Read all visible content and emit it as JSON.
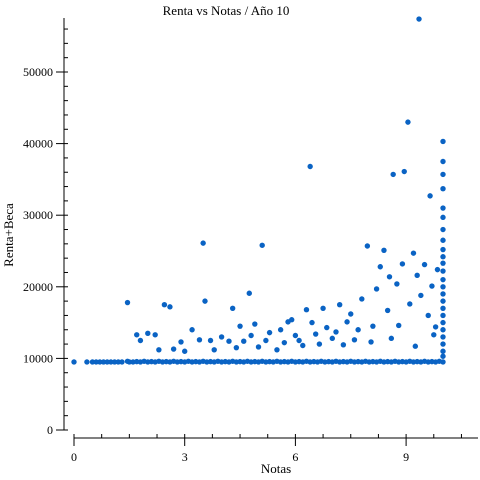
{
  "chart_data": {
    "type": "scatter",
    "title": "Renta vs Notas / Año 10",
    "xlabel": "Notas",
    "ylabel": "Renta+Beca",
    "xlim": [
      -0.35,
      11
    ],
    "ylim": [
      -1200,
      58000
    ],
    "x_ticks": [
      0,
      3,
      6,
      9
    ],
    "x_minor_ticks": [
      0.0,
      0.75,
      1.5,
      2.25,
      3.0,
      3.75,
      4.5,
      5.25,
      6.0,
      6.75,
      7.5,
      8.25,
      9.0,
      9.75,
      10.5
    ],
    "y_ticks": [
      0,
      10000,
      20000,
      30000,
      40000,
      50000
    ],
    "y_minor_ticks": [
      0,
      2000,
      4000,
      6000,
      8000,
      10000,
      12000,
      14000,
      16000,
      18000,
      20000,
      22000,
      24000,
      26000,
      28000,
      30000,
      32000,
      34000,
      36000,
      38000,
      40000,
      42000,
      44000,
      46000,
      48000,
      50000,
      52000,
      54000,
      56000
    ],
    "grid": false,
    "marker_color": "#0a63c4",
    "series": [
      {
        "points": [
          [
            0.0,
            9500
          ],
          [
            0.35,
            9500
          ],
          [
            0.5,
            9500
          ],
          [
            0.6,
            9500
          ],
          [
            0.7,
            9500
          ],
          [
            0.8,
            9500
          ],
          [
            0.9,
            9500
          ],
          [
            1.0,
            9500
          ],
          [
            1.1,
            9500
          ],
          [
            1.2,
            9500
          ],
          [
            1.3,
            9500
          ],
          [
            1.45,
            9600
          ],
          [
            1.5,
            9500
          ],
          [
            1.6,
            9500
          ],
          [
            1.7,
            9550
          ],
          [
            1.8,
            9500
          ],
          [
            1.9,
            9600
          ],
          [
            2.0,
            9500
          ],
          [
            2.1,
            9550
          ],
          [
            2.2,
            9500
          ],
          [
            2.3,
            9600
          ],
          [
            2.4,
            9500
          ],
          [
            2.5,
            9550
          ],
          [
            2.6,
            9500
          ],
          [
            2.7,
            9600
          ],
          [
            2.8,
            9500
          ],
          [
            2.9,
            9550
          ],
          [
            3.0,
            9500
          ],
          [
            3.1,
            9600
          ],
          [
            3.2,
            9500
          ],
          [
            3.3,
            9550
          ],
          [
            3.4,
            9500
          ],
          [
            3.5,
            9600
          ],
          [
            3.6,
            9500
          ],
          [
            3.7,
            9550
          ],
          [
            3.8,
            9500
          ],
          [
            3.9,
            9600
          ],
          [
            4.0,
            9500
          ],
          [
            4.1,
            9550
          ],
          [
            4.2,
            9500
          ],
          [
            4.3,
            9600
          ],
          [
            4.4,
            9500
          ],
          [
            4.5,
            9550
          ],
          [
            4.6,
            9500
          ],
          [
            4.7,
            9600
          ],
          [
            4.8,
            9500
          ],
          [
            4.9,
            9550
          ],
          [
            5.0,
            9500
          ],
          [
            5.1,
            9600
          ],
          [
            5.2,
            9500
          ],
          [
            5.3,
            9550
          ],
          [
            5.4,
            9500
          ],
          [
            5.5,
            9600
          ],
          [
            5.6,
            9500
          ],
          [
            5.7,
            9550
          ],
          [
            5.8,
            9500
          ],
          [
            5.9,
            9600
          ],
          [
            6.0,
            9500
          ],
          [
            6.1,
            9550
          ],
          [
            6.2,
            9500
          ],
          [
            6.3,
            9600
          ],
          [
            6.4,
            9500
          ],
          [
            6.5,
            9550
          ],
          [
            6.6,
            9500
          ],
          [
            6.7,
            9600
          ],
          [
            6.8,
            9500
          ],
          [
            6.9,
            9550
          ],
          [
            7.0,
            9500
          ],
          [
            7.1,
            9600
          ],
          [
            7.2,
            9500
          ],
          [
            7.3,
            9550
          ],
          [
            7.4,
            9500
          ],
          [
            7.5,
            9600
          ],
          [
            7.6,
            9500
          ],
          [
            7.7,
            9550
          ],
          [
            7.8,
            9500
          ],
          [
            7.9,
            9600
          ],
          [
            8.0,
            9500
          ],
          [
            8.1,
            9550
          ],
          [
            8.2,
            9500
          ],
          [
            8.3,
            9600
          ],
          [
            8.4,
            9500
          ],
          [
            8.5,
            9550
          ],
          [
            8.6,
            9500
          ],
          [
            8.7,
            9600
          ],
          [
            8.8,
            9500
          ],
          [
            8.9,
            9550
          ],
          [
            9.0,
            9500
          ],
          [
            9.1,
            9600
          ],
          [
            9.2,
            9500
          ],
          [
            9.3,
            9550
          ],
          [
            9.4,
            9500
          ],
          [
            9.5,
            9600
          ],
          [
            9.6,
            9500
          ],
          [
            9.7,
            9550
          ],
          [
            9.8,
            9500
          ],
          [
            9.9,
            9600
          ],
          [
            10.0,
            9500
          ],
          [
            1.45,
            17800
          ],
          [
            1.7,
            13300
          ],
          [
            1.8,
            12500
          ],
          [
            2.0,
            13500
          ],
          [
            2.2,
            13300
          ],
          [
            2.3,
            11200
          ],
          [
            2.45,
            17500
          ],
          [
            2.6,
            17200
          ],
          [
            2.7,
            11300
          ],
          [
            2.9,
            12300
          ],
          [
            3.0,
            11000
          ],
          [
            3.2,
            14000
          ],
          [
            3.4,
            12600
          ],
          [
            3.5,
            26100
          ],
          [
            3.55,
            18000
          ],
          [
            3.7,
            12500
          ],
          [
            3.8,
            11200
          ],
          [
            4.0,
            13000
          ],
          [
            4.2,
            12400
          ],
          [
            4.3,
            17000
          ],
          [
            4.4,
            11500
          ],
          [
            4.5,
            14500
          ],
          [
            4.6,
            12400
          ],
          [
            4.75,
            19100
          ],
          [
            4.8,
            13200
          ],
          [
            4.9,
            14800
          ],
          [
            5.0,
            11600
          ],
          [
            5.1,
            25800
          ],
          [
            5.2,
            12500
          ],
          [
            5.3,
            13600
          ],
          [
            5.5,
            11200
          ],
          [
            5.6,
            14000
          ],
          [
            5.7,
            12200
          ],
          [
            5.8,
            15100
          ],
          [
            5.9,
            15400
          ],
          [
            6.0,
            13200
          ],
          [
            6.1,
            12500
          ],
          [
            6.2,
            11800
          ],
          [
            6.3,
            16800
          ],
          [
            6.4,
            36800
          ],
          [
            6.45,
            15000
          ],
          [
            6.55,
            13400
          ],
          [
            6.65,
            12000
          ],
          [
            6.75,
            17000
          ],
          [
            6.85,
            14300
          ],
          [
            7.0,
            12800
          ],
          [
            7.1,
            13700
          ],
          [
            7.2,
            17500
          ],
          [
            7.3,
            11900
          ],
          [
            7.4,
            15100
          ],
          [
            7.5,
            16200
          ],
          [
            7.6,
            12600
          ],
          [
            7.7,
            14000
          ],
          [
            7.8,
            18300
          ],
          [
            7.95,
            25700
          ],
          [
            8.05,
            12300
          ],
          [
            8.1,
            14500
          ],
          [
            8.2,
            19700
          ],
          [
            8.3,
            22800
          ],
          [
            8.4,
            25100
          ],
          [
            8.5,
            16700
          ],
          [
            8.55,
            21400
          ],
          [
            8.6,
            12800
          ],
          [
            8.65,
            35700
          ],
          [
            8.75,
            20400
          ],
          [
            8.8,
            14600
          ],
          [
            8.9,
            23200
          ],
          [
            8.95,
            36100
          ],
          [
            9.05,
            43000
          ],
          [
            9.1,
            17600
          ],
          [
            9.2,
            24700
          ],
          [
            9.25,
            11700
          ],
          [
            9.3,
            21600
          ],
          [
            9.35,
            57400
          ],
          [
            9.4,
            18800
          ],
          [
            9.5,
            23100
          ],
          [
            9.6,
            16000
          ],
          [
            9.65,
            32700
          ],
          [
            9.7,
            20100
          ],
          [
            9.75,
            13300
          ],
          [
            9.8,
            14400
          ],
          [
            9.85,
            22400
          ],
          [
            10.0,
            40300
          ],
          [
            10.0,
            37500
          ],
          [
            10.0,
            35700
          ],
          [
            10.0,
            33700
          ],
          [
            10.0,
            31000
          ],
          [
            10.0,
            29700
          ],
          [
            10.0,
            28000
          ],
          [
            10.0,
            26500
          ],
          [
            10.0,
            25200
          ],
          [
            10.0,
            24200
          ],
          [
            10.0,
            23300
          ],
          [
            10.0,
            22200
          ],
          [
            10.0,
            21000
          ],
          [
            10.0,
            20000
          ],
          [
            10.0,
            19000
          ],
          [
            10.0,
            18000
          ],
          [
            10.0,
            17000
          ],
          [
            10.0,
            16000
          ],
          [
            10.0,
            15000
          ],
          [
            10.0,
            14000
          ],
          [
            10.0,
            13000
          ],
          [
            10.0,
            12000
          ],
          [
            10.0,
            11000
          ],
          [
            10.0,
            10300
          ]
        ]
      }
    ]
  }
}
